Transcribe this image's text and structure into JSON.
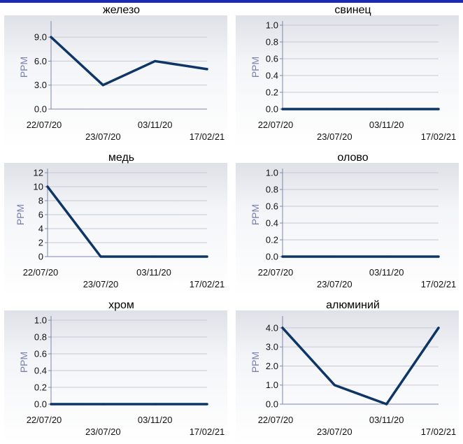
{
  "colors": {
    "line": "#0d3566",
    "axis_label": "#7a7fb0",
    "top_bar": "#1a2bb0"
  },
  "chart_data": [
    {
      "type": "line",
      "title": "железо",
      "ylabel": "PPM",
      "x": [
        "22/07/20",
        "23/07/20",
        "03/11/20",
        "17/02/21"
      ],
      "y": [
        9,
        3,
        6,
        5
      ],
      "ylim": [
        0,
        10.5
      ],
      "yticks": [
        "0.0",
        "3.0",
        "6.0",
        "9.0"
      ]
    },
    {
      "type": "line",
      "title": "свинец",
      "ylabel": "PPM",
      "x": [
        "22/07/20",
        "23/07/20",
        "03/11/20",
        "17/02/21"
      ],
      "y": [
        0,
        0,
        0,
        0
      ],
      "ylim": [
        0,
        1.0
      ],
      "yticks": [
        "0.0",
        "0.2",
        "0.4",
        "0.6",
        "0.8",
        "1.0"
      ]
    },
    {
      "type": "line",
      "title": "медь",
      "ylabel": "PPM",
      "x": [
        "22/07/20",
        "23/07/20",
        "03/11/20",
        "17/02/21"
      ],
      "y": [
        10,
        0,
        0,
        0
      ],
      "ylim": [
        0,
        12
      ],
      "yticks": [
        "0",
        "2",
        "4",
        "6",
        "8",
        "10",
        "12"
      ]
    },
    {
      "type": "line",
      "title": "олово",
      "ylabel": "PPM",
      "x": [
        "22/07/20",
        "23/07/20",
        "03/11/20",
        "17/02/21"
      ],
      "y": [
        0,
        0,
        0,
        0
      ],
      "ylim": [
        0,
        1.0
      ],
      "yticks": [
        "0.0",
        "0.2",
        "0.4",
        "0.6",
        "0.8",
        "1.0"
      ]
    },
    {
      "type": "line",
      "title": "хром",
      "ylabel": "PPM",
      "x": [
        "22/07/20",
        "23/07/20",
        "03/11/20",
        "17/02/21"
      ],
      "y": [
        0,
        0,
        0,
        0
      ],
      "ylim": [
        0,
        1.0
      ],
      "yticks": [
        "0.0",
        "0.2",
        "0.4",
        "0.6",
        "0.8",
        "1.0"
      ]
    },
    {
      "type": "line",
      "title": "алюминий",
      "ylabel": "PPM",
      "x": [
        "22/07/20",
        "23/07/20",
        "03/11/20",
        "17/02/21"
      ],
      "y": [
        4,
        1,
        0,
        4
      ],
      "ylim": [
        0,
        4.4
      ],
      "yticks": [
        "0.0",
        "1.0",
        "2.0",
        "3.0",
        "4.0"
      ]
    }
  ]
}
